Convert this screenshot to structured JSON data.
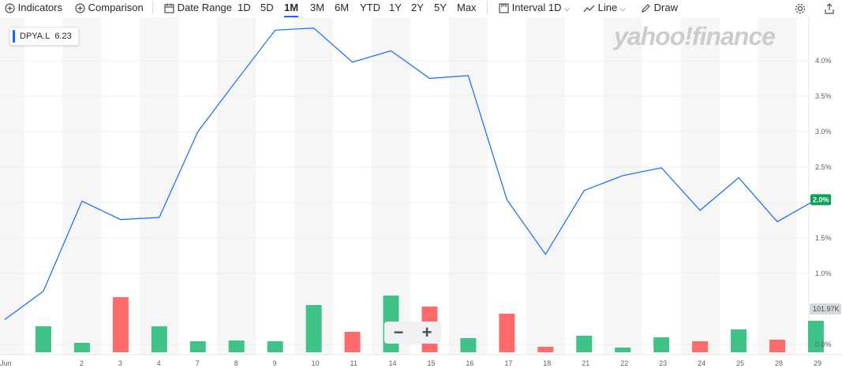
{
  "toolbar": {
    "indicators": "Indicators",
    "comparison": "Comparison",
    "date_range": "Date Range",
    "ranges": [
      "1D",
      "5D",
      "1M",
      "3M",
      "6M",
      "YTD",
      "1Y",
      "2Y",
      "5Y",
      "Max"
    ],
    "active_range": "1M",
    "interval_label": "Interval",
    "interval_value": "1D",
    "chart_type": "Line",
    "draw": "Draw",
    "icons": {
      "indicators": "plus-circle-icon",
      "comparison": "plus-circle-icon",
      "date_range": "calendar-icon",
      "interval": "interval-icon",
      "line": "line-chart-icon",
      "draw": "pencil-icon",
      "settings": "gear-icon",
      "share": "share-icon"
    }
  },
  "legend": {
    "symbol": "DPYA.L",
    "value": "6.23"
  },
  "watermark": "yahoo!finance",
  "zoom": {
    "minus": "−",
    "plus": "+"
  },
  "colors": {
    "line": "#0f69ff",
    "up": "#3fc387",
    "down": "#ff6b6b",
    "current": "#0ea35a",
    "volume_label": "#d5d8dc"
  },
  "chart_data": {
    "type": "line",
    "x": [
      "Jun",
      "",
      "2",
      "3",
      "4",
      "7",
      "8",
      "9",
      "10",
      "11",
      "14",
      "15",
      "16",
      "17",
      "18",
      "21",
      "22",
      "23",
      "24",
      "25",
      "28",
      "29"
    ],
    "series": [
      {
        "values": [
          0.35,
          0.75,
          2.02,
          1.76,
          1.79,
          3.0,
          3.72,
          4.43,
          4.46,
          3.98,
          4.14,
          3.75,
          3.79,
          2.04,
          1.27,
          2.17,
          2.38,
          2.49,
          1.89,
          2.35,
          1.73,
          2.04
        ]
      }
    ],
    "volume": [
      null,
      0.33,
      0.12,
      0.7,
      0.33,
      0.14,
      0.15,
      0.14,
      0.6,
      0.26,
      0.72,
      0.58,
      0.18,
      0.49,
      0.07,
      0.21,
      0.06,
      0.19,
      0.14,
      0.29,
      0.16,
      0.4
    ],
    "volume_up": [
      true,
      true,
      true,
      false,
      true,
      true,
      true,
      true,
      true,
      false,
      true,
      false,
      true,
      false,
      false,
      true,
      true,
      true,
      false,
      true,
      false,
      true
    ],
    "y_ticks": [
      "4.0%",
      "3.5%",
      "3.0%",
      "2.5%",
      "2.0%",
      "1.5%",
      "1.0%",
      "0.0%"
    ],
    "y_tick_values": [
      4.0,
      3.5,
      3.0,
      2.5,
      2.0,
      1.5,
      1.0,
      0.0
    ],
    "ylim": [
      0,
      4.5
    ],
    "current_label": "2.0%",
    "volume_label": "101.97K",
    "volume_label_value": 0.55
  }
}
